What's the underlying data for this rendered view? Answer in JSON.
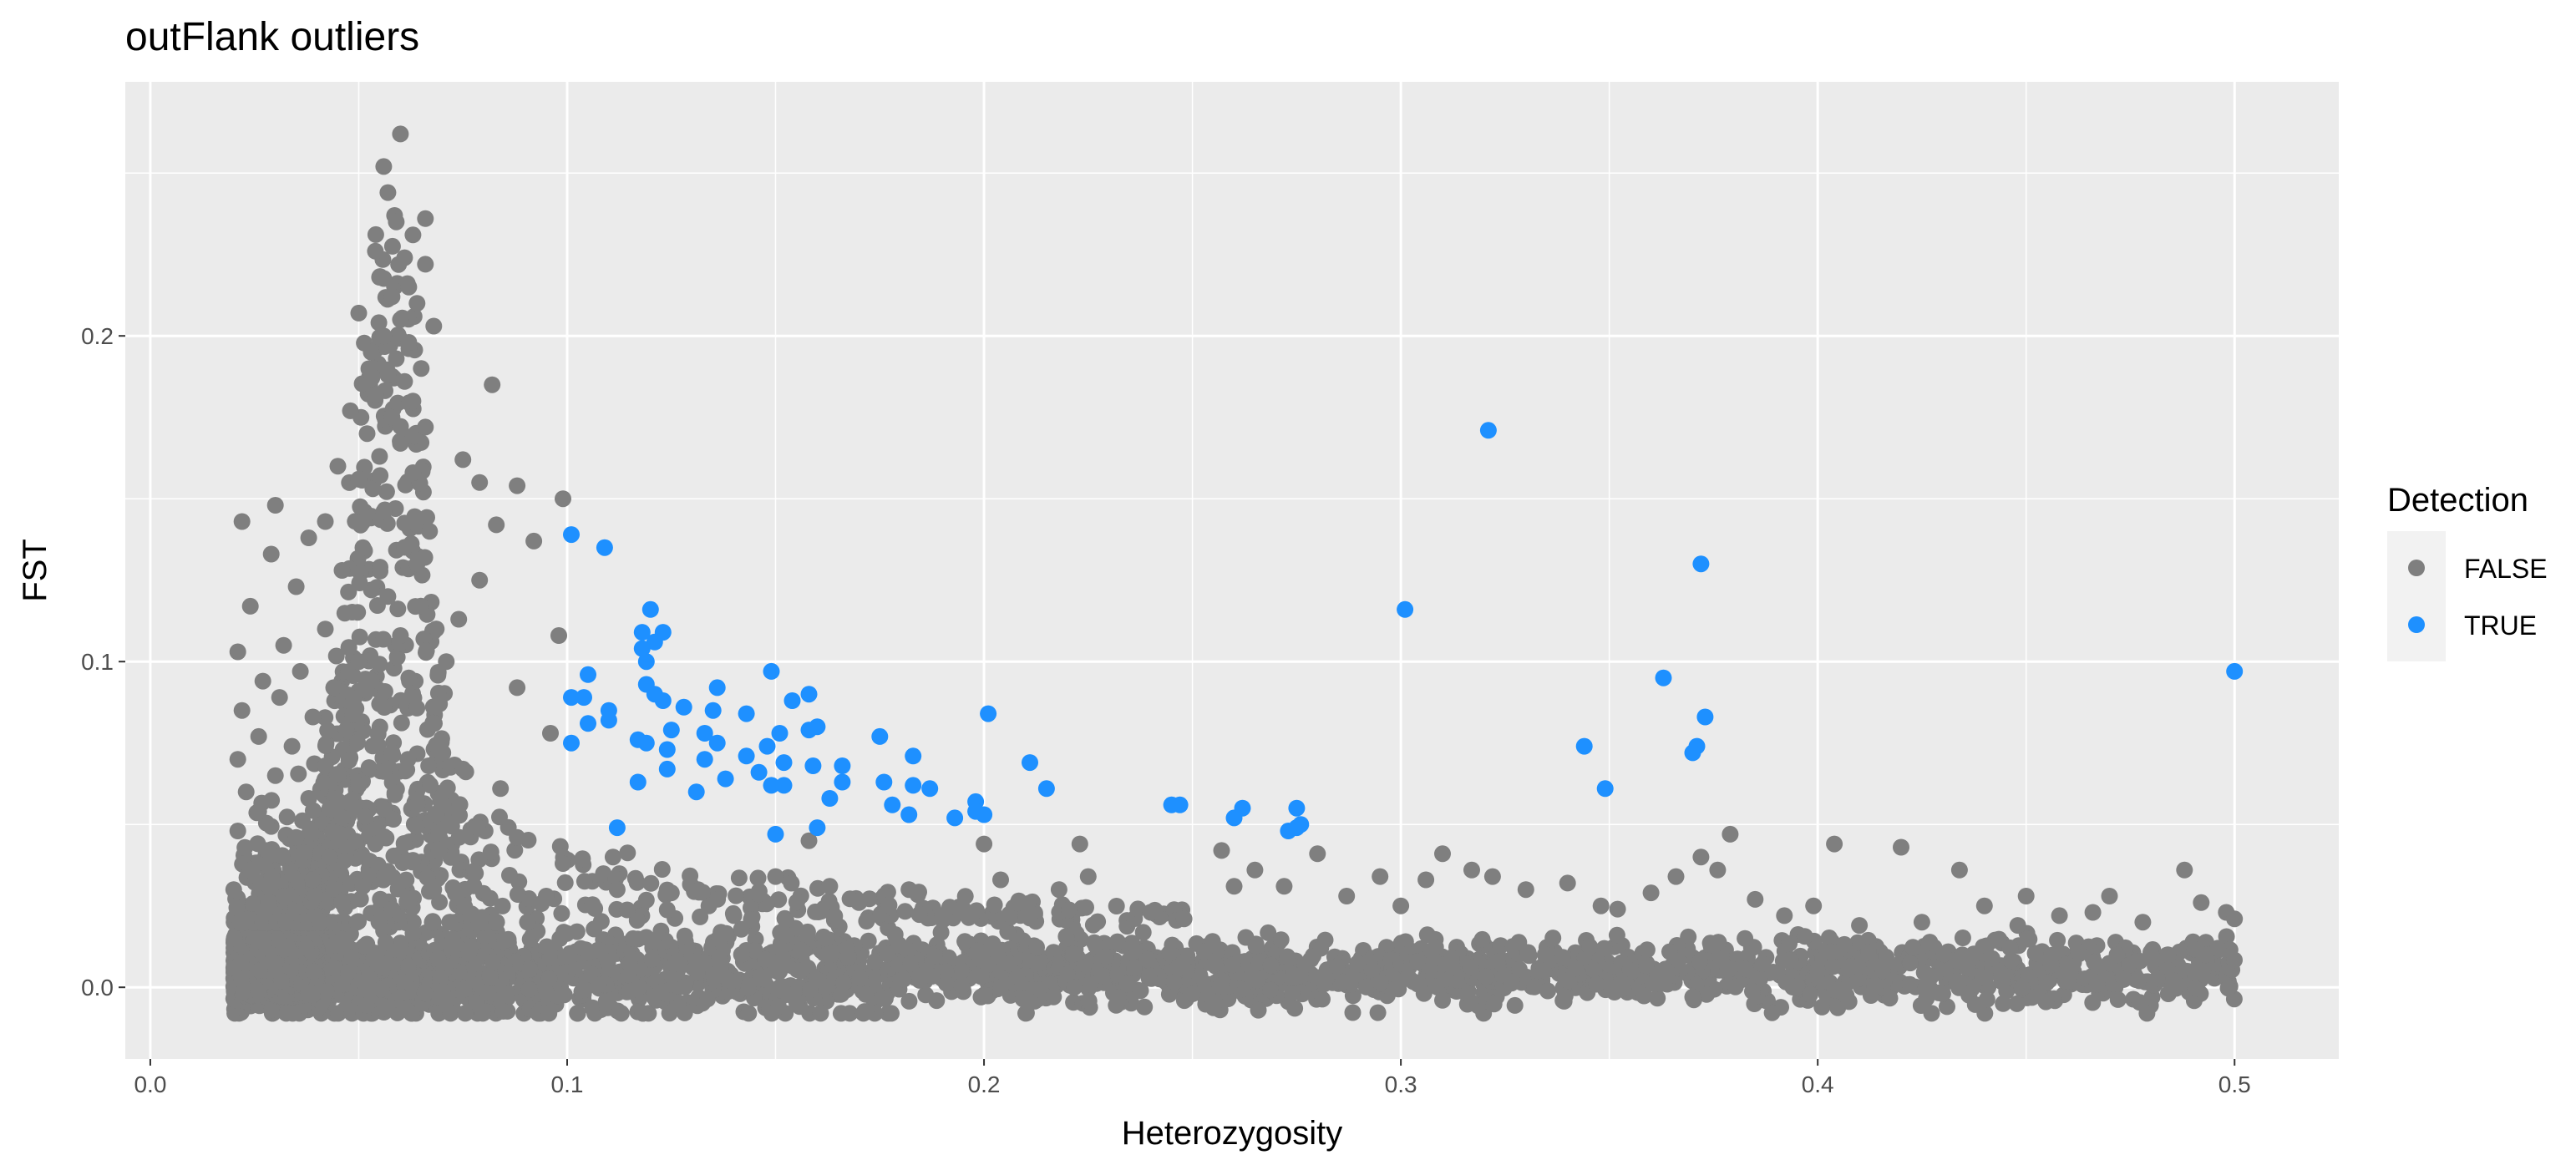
{
  "chart_data": {
    "type": "scatter",
    "title": "outFlank outliers",
    "xlabel": "Heterozygosity",
    "ylabel": "FST",
    "xlim": [
      -0.006,
      0.525
    ],
    "ylim": [
      -0.022,
      0.278
    ],
    "xticks": [
      0.0,
      0.1,
      0.2,
      0.3,
      0.4,
      0.5
    ],
    "xtick_labels": [
      "0.0",
      "0.1",
      "0.2",
      "0.3",
      "0.4",
      "0.5"
    ],
    "yticks": [
      0.0,
      0.1,
      0.2
    ],
    "ytick_labels": [
      "0.0",
      "0.1",
      "0.2"
    ],
    "grid": true,
    "legend": {
      "title": "Detection",
      "position": "right",
      "entries": [
        {
          "label": "FALSE",
          "color": "#7f7f7f"
        },
        {
          "label": "TRUE",
          "color": "#1e90ff"
        }
      ]
    },
    "colors": {
      "FALSE": "#7f7f7f",
      "TRUE": "#1e90ff",
      "panel": "#ebebeb",
      "grid": "#ffffff"
    },
    "series": [
      {
        "name": "FALSE",
        "note_density": "dense background cloud of several thousand points; main band at FST -0.005 to 0.02 across heterozygosity 0.02 to 0.50, plus a high-FST arm at low heterozygosity",
        "points": [
          [
            0.06,
            0.262
          ],
          [
            0.056,
            0.252
          ],
          [
            0.057,
            0.244
          ],
          [
            0.066,
            0.236
          ],
          [
            0.059,
            0.235
          ],
          [
            0.063,
            0.231
          ],
          [
            0.054,
            0.226
          ],
          [
            0.061,
            0.224
          ],
          [
            0.066,
            0.222
          ],
          [
            0.055,
            0.218
          ],
          [
            0.062,
            0.215
          ],
          [
            0.058,
            0.212
          ],
          [
            0.064,
            0.21
          ],
          [
            0.05,
            0.207
          ],
          [
            0.06,
            0.205
          ],
          [
            0.068,
            0.203
          ],
          [
            0.056,
            0.2
          ],
          [
            0.062,
            0.198
          ],
          [
            0.053,
            0.195
          ],
          [
            0.059,
            0.193
          ],
          [
            0.065,
            0.19
          ],
          [
            0.057,
            0.188
          ],
          [
            0.061,
            0.186
          ],
          [
            0.082,
            0.185
          ],
          [
            0.054,
            0.182
          ],
          [
            0.063,
            0.18
          ],
          [
            0.048,
            0.177
          ],
          [
            0.058,
            0.175
          ],
          [
            0.066,
            0.172
          ],
          [
            0.052,
            0.17
          ],
          [
            0.06,
            0.167
          ],
          [
            0.055,
            0.163
          ],
          [
            0.075,
            0.162
          ],
          [
            0.045,
            0.16
          ],
          [
            0.063,
            0.158
          ],
          [
            0.05,
            0.156
          ],
          [
            0.079,
            0.155
          ],
          [
            0.088,
            0.154
          ],
          [
            0.03,
            0.148
          ],
          [
            0.099,
            0.15
          ],
          [
            0.056,
            0.146
          ],
          [
            0.042,
            0.143
          ],
          [
            0.083,
            0.142
          ],
          [
            0.022,
            0.143
          ],
          [
            0.067,
            0.14
          ],
          [
            0.038,
            0.138
          ],
          [
            0.092,
            0.137
          ],
          [
            0.051,
            0.135
          ],
          [
            0.029,
            0.133
          ],
          [
            0.064,
            0.13
          ],
          [
            0.046,
            0.128
          ],
          [
            0.079,
            0.125
          ],
          [
            0.035,
            0.123
          ],
          [
            0.057,
            0.12
          ],
          [
            0.024,
            0.117
          ],
          [
            0.074,
            0.113
          ],
          [
            0.042,
            0.11
          ],
          [
            0.06,
            0.108
          ],
          [
            0.032,
            0.105
          ],
          [
            0.098,
            0.108
          ],
          [
            0.021,
            0.103
          ],
          [
            0.05,
            0.1
          ],
          [
            0.071,
            0.1
          ],
          [
            0.036,
            0.097
          ],
          [
            0.027,
            0.094
          ],
          [
            0.062,
            0.095
          ],
          [
            0.044,
            0.092
          ],
          [
            0.088,
            0.092
          ],
          [
            0.031,
            0.089
          ],
          [
            0.055,
            0.087
          ],
          [
            0.022,
            0.085
          ],
          [
            0.039,
            0.083
          ],
          [
            0.068,
            0.081
          ],
          [
            0.047,
            0.079
          ],
          [
            0.026,
            0.077
          ],
          [
            0.096,
            0.078
          ],
          [
            0.034,
            0.074
          ],
          [
            0.058,
            0.072
          ],
          [
            0.021,
            0.07
          ],
          [
            0.042,
            0.068
          ],
          [
            0.075,
            0.067
          ],
          [
            0.03,
            0.065
          ],
          [
            0.05,
            0.062
          ],
          [
            0.023,
            0.06
          ],
          [
            0.084,
            0.061
          ],
          [
            0.038,
            0.058
          ],
          [
            0.064,
            0.056
          ],
          [
            0.026,
            0.054
          ],
          [
            0.046,
            0.052
          ],
          [
            0.072,
            0.05
          ],
          [
            0.021,
            0.048
          ],
          [
            0.035,
            0.046
          ],
          [
            0.054,
            0.044
          ],
          [
            0.088,
            0.046
          ],
          [
            0.028,
            0.042
          ],
          [
            0.043,
            0.04
          ],
          [
            0.063,
            0.039
          ],
          [
            0.099,
            0.038
          ],
          [
            0.024,
            0.036
          ],
          [
            0.078,
            0.035
          ],
          [
            0.039,
            0.033
          ],
          [
            0.051,
            0.031
          ],
          [
            0.111,
            0.04
          ],
          [
            0.02,
            0.03
          ],
          [
            0.068,
            0.03
          ],
          [
            0.032,
            0.028
          ],
          [
            0.095,
            0.028
          ],
          [
            0.046,
            0.026
          ],
          [
            0.112,
            0.03
          ],
          [
            0.058,
            0.024
          ],
          [
            0.125,
            0.029
          ],
          [
            0.134,
            0.025
          ],
          [
            0.14,
            0.022
          ],
          [
            0.15,
            0.034
          ],
          [
            0.158,
            0.045
          ],
          [
            0.163,
            0.031
          ],
          [
            0.17,
            0.026
          ],
          [
            0.182,
            0.03
          ],
          [
            0.19,
            0.022
          ],
          [
            0.2,
            0.044
          ],
          [
            0.204,
            0.033
          ],
          [
            0.218,
            0.03
          ],
          [
            0.223,
            0.044
          ],
          [
            0.225,
            0.034
          ],
          [
            0.232,
            0.014
          ],
          [
            0.24,
            0.023
          ],
          [
            0.248,
            0.021
          ],
          [
            0.257,
            0.042
          ],
          [
            0.26,
            0.031
          ],
          [
            0.265,
            0.036
          ],
          [
            0.272,
            0.031
          ],
          [
            0.28,
            0.041
          ],
          [
            0.287,
            0.028
          ],
          [
            0.295,
            0.034
          ],
          [
            0.3,
            0.025
          ],
          [
            0.306,
            0.033
          ],
          [
            0.31,
            0.041
          ],
          [
            0.317,
            0.036
          ],
          [
            0.322,
            0.034
          ],
          [
            0.33,
            0.03
          ],
          [
            0.34,
            0.032
          ],
          [
            0.348,
            0.025
          ],
          [
            0.352,
            0.024
          ],
          [
            0.36,
            0.029
          ],
          [
            0.366,
            0.034
          ],
          [
            0.372,
            0.04
          ],
          [
            0.376,
            0.036
          ],
          [
            0.379,
            0.047
          ],
          [
            0.385,
            0.027
          ],
          [
            0.392,
            0.022
          ],
          [
            0.399,
            0.025
          ],
          [
            0.404,
            0.044
          ],
          [
            0.41,
            0.019
          ],
          [
            0.42,
            0.043
          ],
          [
            0.425,
            0.02
          ],
          [
            0.434,
            0.036
          ],
          [
            0.44,
            0.025
          ],
          [
            0.448,
            0.019
          ],
          [
            0.45,
            0.028
          ],
          [
            0.458,
            0.022
          ],
          [
            0.466,
            0.023
          ],
          [
            0.47,
            0.028
          ],
          [
            0.478,
            0.02
          ],
          [
            0.488,
            0.036
          ],
          [
            0.492,
            0.026
          ],
          [
            0.498,
            0.023
          ],
          [
            0.5,
            0.021
          ],
          [
            0.496,
            0.012
          ],
          [
            0.484,
            0.01
          ],
          [
            0.479,
            -0.008
          ],
          [
            0.46,
            0.002
          ],
          [
            0.43,
            -0.002
          ],
          [
            0.4,
            0.005
          ],
          [
            0.37,
            -0.003
          ],
          [
            0.34,
            0.002
          ],
          [
            0.31,
            -0.004
          ],
          [
            0.28,
            0.003
          ],
          [
            0.25,
            -0.002
          ],
          [
            0.22,
            0.004
          ],
          [
            0.21,
            -0.008
          ]
        ]
      },
      {
        "name": "TRUE",
        "points": [
          [
            0.321,
            0.171
          ],
          [
            0.101,
            0.139
          ],
          [
            0.109,
            0.135
          ],
          [
            0.372,
            0.13
          ],
          [
            0.12,
            0.116
          ],
          [
            0.301,
            0.116
          ],
          [
            0.118,
            0.109
          ],
          [
            0.123,
            0.109
          ],
          [
            0.121,
            0.106
          ],
          [
            0.118,
            0.104
          ],
          [
            0.119,
            0.1
          ],
          [
            0.5,
            0.097
          ],
          [
            0.149,
            0.097
          ],
          [
            0.105,
            0.096
          ],
          [
            0.363,
            0.095
          ],
          [
            0.119,
            0.093
          ],
          [
            0.136,
            0.092
          ],
          [
            0.121,
            0.09
          ],
          [
            0.158,
            0.09
          ],
          [
            0.101,
            0.089
          ],
          [
            0.104,
            0.089
          ],
          [
            0.154,
            0.088
          ],
          [
            0.123,
            0.088
          ],
          [
            0.128,
            0.086
          ],
          [
            0.135,
            0.085
          ],
          [
            0.11,
            0.085
          ],
          [
            0.143,
            0.084
          ],
          [
            0.201,
            0.084
          ],
          [
            0.373,
            0.083
          ],
          [
            0.11,
            0.082
          ],
          [
            0.105,
            0.081
          ],
          [
            0.16,
            0.08
          ],
          [
            0.125,
            0.079
          ],
          [
            0.158,
            0.079
          ],
          [
            0.133,
            0.078
          ],
          [
            0.151,
            0.078
          ],
          [
            0.175,
            0.077
          ],
          [
            0.117,
            0.076
          ],
          [
            0.119,
            0.075
          ],
          [
            0.136,
            0.075
          ],
          [
            0.101,
            0.075
          ],
          [
            0.148,
            0.074
          ],
          [
            0.344,
            0.074
          ],
          [
            0.371,
            0.074
          ],
          [
            0.124,
            0.073
          ],
          [
            0.37,
            0.072
          ],
          [
            0.143,
            0.071
          ],
          [
            0.183,
            0.071
          ],
          [
            0.133,
            0.07
          ],
          [
            0.211,
            0.069
          ],
          [
            0.152,
            0.069
          ],
          [
            0.159,
            0.068
          ],
          [
            0.166,
            0.068
          ],
          [
            0.124,
            0.067
          ],
          [
            0.146,
            0.066
          ],
          [
            0.138,
            0.064
          ],
          [
            0.117,
            0.063
          ],
          [
            0.176,
            0.063
          ],
          [
            0.166,
            0.063
          ],
          [
            0.149,
            0.062
          ],
          [
            0.183,
            0.062
          ],
          [
            0.152,
            0.062
          ],
          [
            0.215,
            0.061
          ],
          [
            0.349,
            0.061
          ],
          [
            0.131,
            0.06
          ],
          [
            0.187,
            0.061
          ],
          [
            0.163,
            0.058
          ],
          [
            0.198,
            0.057
          ],
          [
            0.178,
            0.056
          ],
          [
            0.245,
            0.056
          ],
          [
            0.247,
            0.056
          ],
          [
            0.262,
            0.055
          ],
          [
            0.275,
            0.055
          ],
          [
            0.198,
            0.054
          ],
          [
            0.2,
            0.053
          ],
          [
            0.182,
            0.053
          ],
          [
            0.193,
            0.052
          ],
          [
            0.26,
            0.052
          ],
          [
            0.276,
            0.05
          ],
          [
            0.275,
            0.049
          ],
          [
            0.112,
            0.049
          ],
          [
            0.16,
            0.049
          ],
          [
            0.273,
            0.048
          ],
          [
            0.15,
            0.047
          ]
        ]
      }
    ]
  }
}
